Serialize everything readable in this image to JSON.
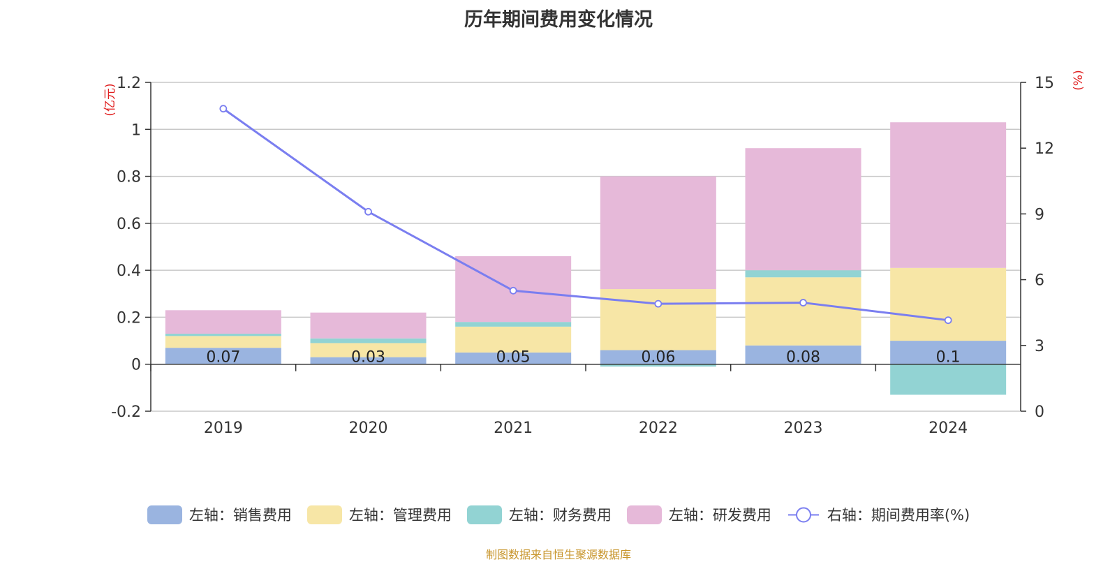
{
  "title": "历年期间费用变化情况",
  "source": "制图数据来自恒生聚源数据库",
  "colors": {
    "sales": "#9ab4e0",
    "admin": "#f7e6a6",
    "finance": "#92d3d3",
    "rnd": "#e6b9d9",
    "rate": "#7a7ef0",
    "axis_unit": "#e02020"
  },
  "legend": [
    {
      "label": "左轴：销售费用",
      "key": "sales"
    },
    {
      "label": "左轴：管理费用",
      "key": "admin"
    },
    {
      "label": "左轴：财务费用",
      "key": "finance"
    },
    {
      "label": "左轴：研发费用",
      "key": "rnd"
    },
    {
      "label": "右轴：期间费用率(%)",
      "key": "rate"
    }
  ],
  "chart_data": {
    "type": "bar",
    "stacked": true,
    "categories": [
      "2019",
      "2020",
      "2021",
      "2022",
      "2023",
      "2024"
    ],
    "y_left_unit": "(亿元)",
    "y_right_unit": "(%)",
    "y_left_range": [
      -0.2,
      1.2
    ],
    "y_left_ticks": [
      "-0.2",
      "0",
      "0.2",
      "0.4",
      "0.6",
      "0.8",
      "1",
      "1.2"
    ],
    "y_right_range": [
      0,
      15
    ],
    "y_right_ticks": [
      "0",
      "3",
      "6",
      "9",
      "12",
      "15"
    ],
    "grid": true,
    "legend_position": "bottom",
    "series": [
      {
        "name": "左轴：销售费用",
        "key": "sales",
        "values": [
          0.07,
          0.03,
          0.05,
          0.06,
          0.08,
          0.1
        ],
        "labels": [
          "0.07",
          "0.03",
          "0.05",
          "0.06",
          "0.08",
          "0.1"
        ]
      },
      {
        "name": "左轴：管理费用",
        "key": "admin",
        "values": [
          0.05,
          0.06,
          0.11,
          0.26,
          0.29,
          0.31
        ]
      },
      {
        "name": "左轴：财务费用",
        "key": "finance",
        "values": [
          0.01,
          0.02,
          0.02,
          -0.01,
          0.03,
          -0.13
        ]
      },
      {
        "name": "左轴：研发费用",
        "key": "rnd",
        "values": [
          0.1,
          0.11,
          0.28,
          0.48,
          0.52,
          0.62
        ]
      }
    ],
    "line_series": {
      "name": "右轴：期间费用率(%)",
      "key": "rate",
      "axis": "right",
      "values": [
        13.8,
        9.1,
        5.5,
        4.9,
        4.95,
        4.15
      ]
    }
  }
}
